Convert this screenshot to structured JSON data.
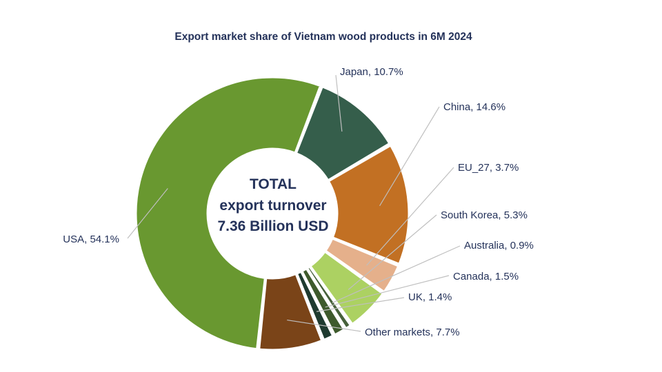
{
  "chart_data": {
    "type": "pie",
    "title": "Export market share of Vietnam wood products in 6M 2024",
    "center_text": [
      "TOTAL",
      "export turnover",
      "7.36 Billion USD"
    ],
    "unit": "%",
    "slices": [
      {
        "name": "Japan",
        "value": 10.7,
        "label": "Japan, 10.7%",
        "color": "#355e4b"
      },
      {
        "name": "China",
        "value": 14.6,
        "label": "China, 14.6%",
        "color": "#c27023"
      },
      {
        "name": "EU_27",
        "value": 3.7,
        "label": "EU_27, 3.7%",
        "color": "#e5b08b"
      },
      {
        "name": "South Korea",
        "value": 5.3,
        "label": "South Korea, 5.3%",
        "color": "#acd162"
      },
      {
        "name": "Australia",
        "value": 0.9,
        "label": "Australia, 0.9%",
        "color": "#46613a"
      },
      {
        "name": "Canada",
        "value": 1.5,
        "label": "Canada, 1.5%",
        "color": "#3e5a2c"
      },
      {
        "name": "UK",
        "value": 1.4,
        "label": "UK, 1.4%",
        "color": "#1f3b30"
      },
      {
        "name": "Other markets",
        "value": 7.7,
        "label": "Other markets, 7.7%",
        "color": "#7a4418"
      },
      {
        "name": "USA",
        "value": 54.1,
        "label": "USA, 54.1%",
        "color": "#699830"
      }
    ],
    "start_angle_deg": 21
  }
}
